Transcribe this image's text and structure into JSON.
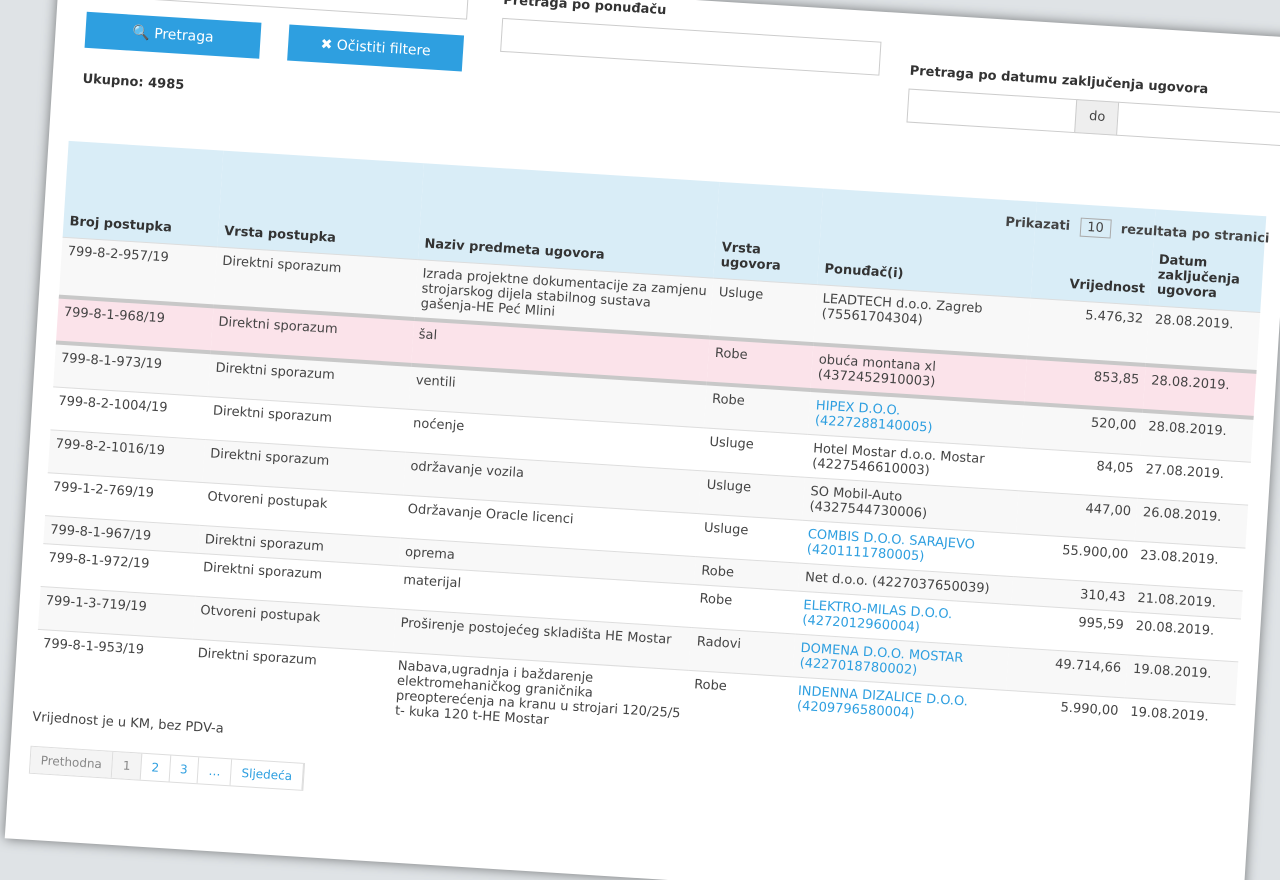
{
  "search": {
    "button_search": "Pretraga",
    "button_clear": "Očistiti filtere",
    "label_bidder": "Pretraga po ponuđaču",
    "label_date": "Pretraga po datumu zaključenja ugovora",
    "date_to": "do"
  },
  "total": "Ukupno: 4985",
  "page_size": {
    "label_before": "Prikazati",
    "value": "10",
    "label_after": "rezultata po stranici"
  },
  "table": {
    "headers": [
      "Broj postupka",
      "Vrsta postupka",
      "Naziv predmeta ugovora",
      "Vrsta ugovora",
      "Ponuđač(i)",
      "Vrijednost",
      "Datum zaključenja ugovora"
    ],
    "highlighted_row": 1,
    "rows": [
      {
        "cells": [
          "799-8-2-957/19",
          "Direktni sporazum",
          "Izrada projektne dokumentacije za zamjenu strojarskog dijela stabilnog sustava gašenja-HE Peć Mlini",
          "Usluge",
          "LEADTECH d.o.o. Zagreb (75561704304)",
          "5.476,32",
          "28.08.2019."
        ],
        "link": false
      },
      {
        "cells": [
          "799-8-1-968/19",
          "Direktni sporazum",
          "šal",
          "Robe",
          "obuća montana xl (4372452910003)",
          "853,85",
          "28.08.2019."
        ],
        "link": false
      },
      {
        "cells": [
          "799-8-1-973/19",
          "Direktni sporazum",
          "ventili",
          "Robe",
          "HIPEX D.O.O. (4227288140005)",
          "520,00",
          "28.08.2019."
        ],
        "link": true
      },
      {
        "cells": [
          "799-8-2-1004/19",
          "Direktni sporazum",
          "noćenje",
          "Usluge",
          "Hotel Mostar d.o.o. Mostar (4227546610003)",
          "84,05",
          "27.08.2019."
        ],
        "link": false
      },
      {
        "cells": [
          "799-8-2-1016/19",
          "Direktni sporazum",
          "održavanje vozila",
          "Usluge",
          "SO Mobil-Auto (4327544730006)",
          "447,00",
          "26.08.2019."
        ],
        "link": false
      },
      {
        "cells": [
          "799-1-2-769/19",
          "Otvoreni postupak",
          "Održavanje Oracle licenci",
          "Usluge",
          "COMBIS D.O.O. SARAJEVO (4201111780005)",
          "55.900,00",
          "23.08.2019."
        ],
        "link": true
      },
      {
        "cells": [
          "799-8-1-967/19",
          "Direktni sporazum",
          "oprema",
          "Robe",
          "Net d.o.o. (4227037650039)",
          "310,43",
          "21.08.2019."
        ],
        "link": false
      },
      {
        "cells": [
          "799-8-1-972/19",
          "Direktni sporazum",
          "materijal",
          "Robe",
          "ELEKTRO-MILAS D.O.O. (4272012960004)",
          "995,59",
          "20.08.2019."
        ],
        "link": true
      },
      {
        "cells": [
          "799-1-3-719/19",
          "Otvoreni postupak",
          "Proširenje postojećeg skladišta HE Mostar",
          "Radovi",
          "DOMENA D.O.O. MOSTAR (4227018780002)",
          "49.714,66",
          "19.08.2019."
        ],
        "link": true
      },
      {
        "cells": [
          "799-8-1-953/19",
          "Direktni sporazum",
          "Nabava,ugradnja i baždarenje elektromehaničkog graničnika preopterećenja na kranu u strojari 120/25/5 t- kuka 120 t-HE Mostar",
          "Robe",
          "INDENNA DIZALICE D.O.O. (4209796580004)",
          "5.990,00",
          "19.08.2019."
        ],
        "link": true
      }
    ]
  },
  "note": "Vrijednost je u KM, bez PDV-a",
  "pagination": [
    "Prethodna",
    "1",
    "2",
    "3",
    "…",
    "Sljedeća"
  ]
}
